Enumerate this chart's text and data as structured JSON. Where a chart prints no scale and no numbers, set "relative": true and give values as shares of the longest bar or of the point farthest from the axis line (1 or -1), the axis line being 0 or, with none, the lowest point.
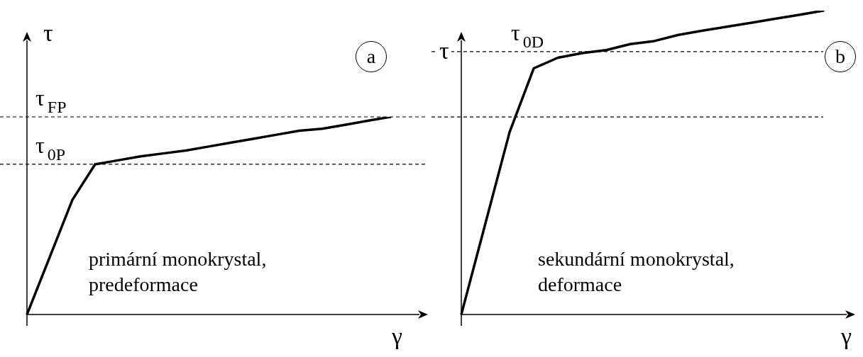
{
  "chart_data": [
    {
      "type": "line",
      "relative": true,
      "xlabel": "γ",
      "ylabel": "τ",
      "marker": "none",
      "line_style": "solid",
      "categories": [
        null,
        null,
        null,
        null,
        null,
        null,
        null,
        null,
        null,
        null,
        null,
        null,
        null,
        null,
        null,
        null,
        null
      ],
      "series": [
        {
          "color": "#000000",
          "values": [
            0,
            0.29,
            0.58,
            0.76,
            0.78,
            0.8,
            0.815,
            0.83,
            0.85,
            0.87,
            0.89,
            0.91,
            0.93,
            0.94,
            0.96,
            0.98,
            1
          ]
        }
      ],
      "ref_lines": [
        {
          "axis": "y",
          "value": 1,
          "label": "τ$_{FP}$",
          "color": "#000000",
          "line_style": "dashed"
        },
        {
          "axis": "y",
          "value": 0.76,
          "label": "τ$_{0P}$",
          "color": "#000000",
          "line_style": "dashed"
        }
      ],
      "annotations": [
        "a",
        "primární monokrystal,\npredeformace"
      ]
    },
    {
      "type": "line",
      "relative": true,
      "xlabel": "γ",
      "ylabel": "τ",
      "marker": "none",
      "line_style": "solid",
      "categories": [
        null,
        null,
        null,
        null,
        null,
        null,
        null,
        null,
        null,
        null,
        null,
        null,
        null,
        null,
        null,
        null,
        null
      ],
      "series": [
        {
          "color": "#000000",
          "values": [
            0,
            0.3,
            0.6,
            0.81,
            0.845,
            0.86,
            0.87,
            0.89,
            0.9,
            0.92,
            0.934,
            0.947,
            0.96,
            0.973,
            0.986,
            1,
            null
          ]
        }
      ],
      "ref_lines": [
        {
          "axis": "y",
          "value": 0.865,
          "label": "τ$_{0D}$",
          "color": "#000000",
          "line_style": "dashed"
        },
        {
          "axis": "y",
          "value": 0.65,
          "label": null,
          "color": "#000000",
          "line_style": "dashed"
        }
      ],
      "annotations": [
        "b",
        "sekundární monokrystal,\ndeformace"
      ]
    }
  ]
}
